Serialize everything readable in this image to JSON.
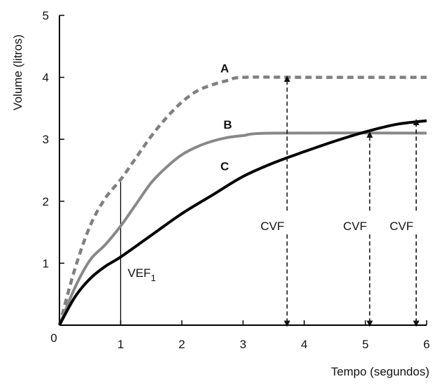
{
  "chart_data": {
    "type": "line",
    "title": "",
    "xlabel": "Tempo (segundos)",
    "ylabel": "Volume (litros)",
    "xlim": [
      0,
      6
    ],
    "ylim": [
      0,
      5
    ],
    "x_ticks": [
      0,
      1,
      2,
      3,
      4,
      5,
      6
    ],
    "y_ticks": [
      1,
      2,
      3,
      4,
      5
    ],
    "origin_label": "0",
    "grid": false,
    "series": [
      {
        "name": "A",
        "style": "dashed",
        "color": "#808080",
        "points": [
          [
            0,
            0
          ],
          [
            0.25,
            0.9
          ],
          [
            0.5,
            1.6
          ],
          [
            0.75,
            2.05
          ],
          [
            1,
            2.35
          ],
          [
            1.25,
            2.7
          ],
          [
            1.5,
            3.05
          ],
          [
            1.75,
            3.35
          ],
          [
            2,
            3.6
          ],
          [
            2.25,
            3.78
          ],
          [
            2.5,
            3.88
          ],
          [
            2.75,
            3.95
          ],
          [
            3,
            4.0
          ],
          [
            4,
            4.0
          ],
          [
            5,
            4.0
          ],
          [
            6,
            4.0
          ]
        ]
      },
      {
        "name": "B",
        "style": "solid",
        "color": "#888888",
        "points": [
          [
            0,
            0
          ],
          [
            0.25,
            0.6
          ],
          [
            0.5,
            1.05
          ],
          [
            0.75,
            1.3
          ],
          [
            1,
            1.6
          ],
          [
            1.25,
            1.95
          ],
          [
            1.5,
            2.3
          ],
          [
            1.75,
            2.55
          ],
          [
            2,
            2.75
          ],
          [
            2.25,
            2.88
          ],
          [
            2.5,
            2.97
          ],
          [
            2.75,
            3.03
          ],
          [
            3,
            3.06
          ],
          [
            3.5,
            3.1
          ],
          [
            6,
            3.1
          ]
        ]
      },
      {
        "name": "C",
        "style": "solid",
        "color": "#000000",
        "points": [
          [
            0,
            0
          ],
          [
            0.25,
            0.45
          ],
          [
            0.5,
            0.75
          ],
          [
            0.75,
            0.95
          ],
          [
            1,
            1.1
          ],
          [
            1.5,
            1.45
          ],
          [
            2,
            1.8
          ],
          [
            2.5,
            2.1
          ],
          [
            3,
            2.4
          ],
          [
            3.5,
            2.62
          ],
          [
            4,
            2.8
          ],
          [
            4.5,
            2.97
          ],
          [
            5,
            3.12
          ],
          [
            5.5,
            3.24
          ],
          [
            6,
            3.3
          ]
        ]
      }
    ],
    "annotations": [
      {
        "label": "VEF",
        "subscript": "1",
        "type": "vertical-line",
        "x": 1,
        "y_from": 0,
        "y_to": 2.35
      },
      {
        "label": "CVF",
        "type": "double-arrow",
        "x": 3.72,
        "y_from": 0,
        "y_to": 4.0
      },
      {
        "label": "CVF",
        "type": "double-arrow",
        "x": 5.07,
        "y_from": 0,
        "y_to": 3.1
      },
      {
        "label": "CVF",
        "type": "double-arrow",
        "x": 5.83,
        "y_from": 0,
        "y_to": 3.3
      }
    ]
  }
}
